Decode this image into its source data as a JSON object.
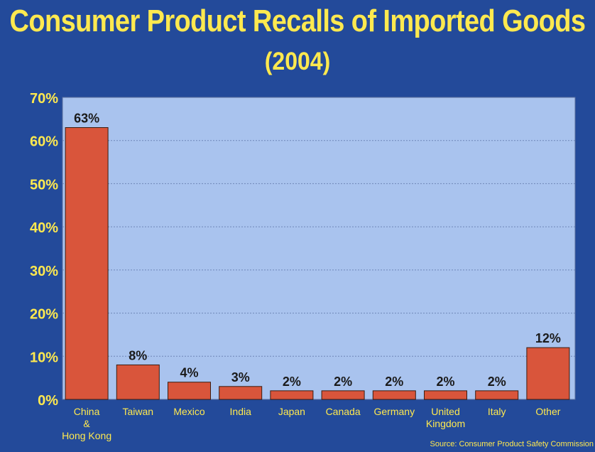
{
  "chart_data": {
    "type": "bar",
    "title": "Consumer Product Recalls of Imported Goods",
    "subtitle": "(2004)",
    "categories": [
      "China & Hong Kong",
      "Taiwan",
      "Mexico",
      "India",
      "Japan",
      "Canada",
      "Germany",
      "United Kingdom",
      "Italy",
      "Other"
    ],
    "category_lines": [
      [
        "China",
        "&",
        "Hong Kong"
      ],
      [
        "Taiwan"
      ],
      [
        "Mexico"
      ],
      [
        "India"
      ],
      [
        "Japan"
      ],
      [
        "Canada"
      ],
      [
        "Germany"
      ],
      [
        "United",
        "Kingdom"
      ],
      [
        "Italy"
      ],
      [
        "Other"
      ]
    ],
    "values": [
      63,
      8,
      4,
      3,
      2,
      2,
      2,
      2,
      2,
      12
    ],
    "data_labels": [
      "63%",
      "8%",
      "4%",
      "3%",
      "2%",
      "2%",
      "2%",
      "2%",
      "2%",
      "12%"
    ],
    "y_ticks": [
      0,
      10,
      20,
      30,
      40,
      50,
      60,
      70
    ],
    "y_tick_labels": [
      "0%",
      "10%",
      "20%",
      "30%",
      "40%",
      "50%",
      "60%",
      "70%"
    ],
    "ylim": [
      0,
      70
    ],
    "xlabel": "",
    "ylabel": "",
    "grid": true,
    "source": "Source: Consumer Product Safety Commission",
    "colors": {
      "background": "#234a9a",
      "plot_area": "#a9c3ee",
      "bar": "#d9553b",
      "bar_outline": "#3a1c10",
      "title": "#ffe94f",
      "tick_label": "#ffe94f",
      "category_label": "#ffe94f",
      "data_label": "#1a1a1a",
      "gridline": "#6f86b8"
    }
  }
}
